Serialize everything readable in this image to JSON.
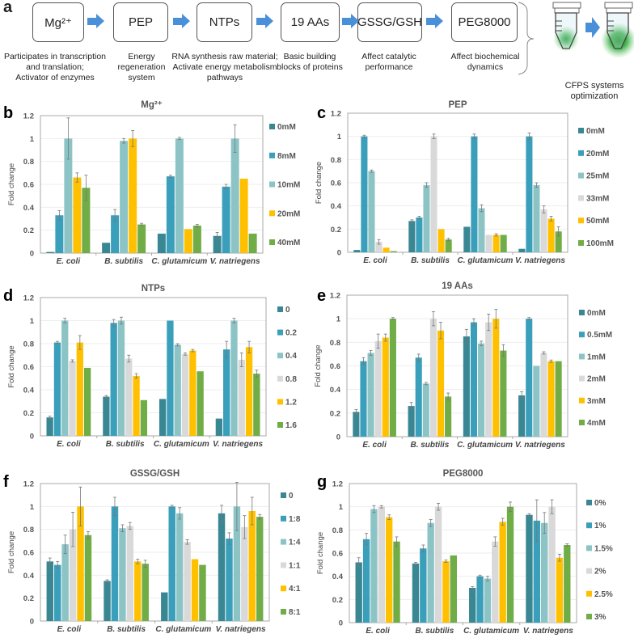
{
  "panel_a": {
    "label": "a",
    "steps": [
      {
        "name": "Mg²⁺",
        "desc": "Participates in transcription\nand translation;\nActivator of enzymes"
      },
      {
        "name": "PEP",
        "desc": "Energy regeneration\nsystem"
      },
      {
        "name": "NTPs",
        "desc": "RNA synthesis raw material;\nActivate energy metabolism\npathways"
      },
      {
        "name": "19 AAs",
        "desc": "Basic building\nblocks of proteins"
      },
      {
        "name": "GSSG/GSH",
        "desc": "Affect catalytic\nperformance"
      },
      {
        "name": "PEG8000",
        "desc": "Affect biochemical\ndynamics"
      }
    ],
    "outcome": "CFPS systems\noptimization",
    "arrow_color": "#4a90d9",
    "glow_color": "#2eaa3a"
  },
  "chart_data": [
    {
      "panel": "b",
      "type": "bar",
      "title": "Mg²⁺",
      "xlabel": "",
      "ylabel": "Fold change",
      "ylim": [
        0,
        1.2
      ],
      "yticks": [
        "0",
        "0.2",
        "0.4",
        "0.6",
        "0.8",
        "1",
        "1.2"
      ],
      "grid": true,
      "legend": "right",
      "categories": [
        "E. coli",
        "B. subtilis",
        "C. glutamicum",
        "V. natriegens"
      ],
      "series": [
        {
          "name": "0mM",
          "color": "#3a8794",
          "values": [
            0.01,
            0.09,
            0.17,
            0.15
          ],
          "errors": [
            0,
            0,
            0,
            0.03
          ]
        },
        {
          "name": "8mM",
          "color": "#3a9fba",
          "values": [
            0.33,
            0.33,
            0.67,
            0.58
          ],
          "errors": [
            0.04,
            0.05,
            0.01,
            0.02
          ]
        },
        {
          "name": "10mM",
          "color": "#8cc4c6",
          "values": [
            1.0,
            0.98,
            1.0,
            1.0
          ],
          "errors": [
            0.18,
            0.02,
            0.01,
            0.12
          ]
        },
        {
          "name": "20mM",
          "color": "#ffc000",
          "values": [
            0.66,
            1.0,
            0.21,
            0.65
          ],
          "errors": [
            0.04,
            0.07,
            0,
            0
          ]
        },
        {
          "name": "40mM",
          "color": "#70ad47",
          "values": [
            0.57,
            0.25,
            0.24,
            0.17
          ],
          "errors": [
            0.11,
            0.01,
            0.01,
            0
          ]
        }
      ]
    },
    {
      "panel": "c",
      "type": "bar",
      "title": "PEP",
      "xlabel": "",
      "ylabel": "Fold change",
      "ylim": [
        0,
        1.2
      ],
      "yticks": [
        "0",
        "0.2",
        "0.4",
        "0.6",
        "0.8",
        "1",
        "1.2"
      ],
      "grid": true,
      "legend": "right",
      "categories": [
        "E. coli",
        "B. subtilis",
        "C. glutamicum",
        "V. natriegens"
      ],
      "series": [
        {
          "name": "0mM",
          "color": "#3a8794",
          "values": [
            0.02,
            0.27,
            0.22,
            0.03
          ],
          "errors": [
            0,
            0.01,
            0,
            0
          ]
        },
        {
          "name": "20mM",
          "color": "#3a9fba",
          "values": [
            1.0,
            0.3,
            1.0,
            1.0
          ],
          "errors": [
            0.01,
            0.01,
            0.02,
            0.03
          ]
        },
        {
          "name": "25mM",
          "color": "#8cc4c6",
          "values": [
            0.7,
            0.58,
            0.38,
            0.58
          ],
          "errors": [
            0.01,
            0.02,
            0.03,
            0.02
          ]
        },
        {
          "name": "33mM",
          "color": "#d9d9d9",
          "values": [
            0.09,
            1.0,
            0.15,
            0.37
          ],
          "errors": [
            0.02,
            0.02,
            0,
            0.03
          ]
        },
        {
          "name": "50mM",
          "color": "#ffc000",
          "values": [
            0.04,
            0.2,
            0.15,
            0.29
          ],
          "errors": [
            0,
            0,
            0.01,
            0.02
          ]
        },
        {
          "name": "100mM",
          "color": "#70ad47",
          "values": [
            0.01,
            0.11,
            0.15,
            0.18
          ],
          "errors": [
            0,
            0.01,
            0,
            0.04
          ]
        }
      ]
    },
    {
      "panel": "d",
      "type": "bar",
      "title": "NTPs",
      "xlabel": "",
      "ylabel": "Fold change",
      "ylim": [
        0,
        1.2
      ],
      "yticks": [
        "0",
        "0.2",
        "0.4",
        "0.6",
        "0.8",
        "1",
        "1.2"
      ],
      "grid": true,
      "legend": "right",
      "categories": [
        "E. coli",
        "B. subtilis",
        "C. glutamicum",
        "V. natriegens"
      ],
      "series": [
        {
          "name": "0",
          "color": "#3a8794",
          "values": [
            0.16,
            0.34,
            0.32,
            0.15
          ],
          "errors": [
            0.01,
            0.01,
            0,
            0
          ]
        },
        {
          "name": "0.2",
          "color": "#3a9fba",
          "values": [
            0.81,
            0.98,
            1.0,
            0.75
          ],
          "errors": [
            0.01,
            0.03,
            0,
            0.07
          ]
        },
        {
          "name": "0.4",
          "color": "#8cc4c6",
          "values": [
            1.0,
            1.0,
            0.79,
            1.0
          ],
          "errors": [
            0.02,
            0.03,
            0.01,
            0.02
          ]
        },
        {
          "name": "0.8",
          "color": "#d9d9d9",
          "values": [
            0.65,
            0.67,
            0.71,
            0.66
          ],
          "errors": [
            0.01,
            0.03,
            0.01,
            0.06
          ]
        },
        {
          "name": "1.2",
          "color": "#ffc000",
          "values": [
            0.81,
            0.52,
            0.74,
            0.77
          ],
          "errors": [
            0.06,
            0.02,
            0.01,
            0.05
          ]
        },
        {
          "name": "1.6",
          "color": "#70ad47",
          "values": [
            0.59,
            0.31,
            0.56,
            0.54
          ],
          "errors": [
            0,
            0,
            0,
            0.03
          ]
        }
      ]
    },
    {
      "panel": "e",
      "type": "bar",
      "title": "19 AAs",
      "xlabel": "",
      "ylabel": "Fold change",
      "ylim": [
        0,
        1.2
      ],
      "yticks": [
        "0",
        "0.2",
        "0.4",
        "0.6",
        "0.8",
        "1",
        "1.2"
      ],
      "grid": true,
      "legend": "right",
      "categories": [
        "E. coli",
        "B. subtilis",
        "C. glutamicum",
        "V. natriegens"
      ],
      "series": [
        {
          "name": "0mM",
          "color": "#3a8794",
          "values": [
            0.21,
            0.26,
            0.85,
            0.35
          ],
          "errors": [
            0.02,
            0.03,
            0.06,
            0.03
          ]
        },
        {
          "name": "0.5mM",
          "color": "#3a9fba",
          "values": [
            0.64,
            0.67,
            0.97,
            1.0
          ],
          "errors": [
            0.03,
            0.03,
            0.03,
            0.01
          ]
        },
        {
          "name": "1mM",
          "color": "#8cc4c6",
          "values": [
            0.71,
            0.45,
            0.79,
            0.6
          ],
          "errors": [
            0.02,
            0.01,
            0.02,
            0
          ]
        },
        {
          "name": "2mM",
          "color": "#d9d9d9",
          "values": [
            0.81,
            1.0,
            0.97,
            0.71
          ],
          "errors": [
            0.06,
            0.06,
            0.07,
            0.01
          ]
        },
        {
          "name": "3mM",
          "color": "#ffc000",
          "values": [
            0.84,
            0.9,
            1.0,
            0.64
          ],
          "errors": [
            0.03,
            0.07,
            0.08,
            0.01
          ]
        },
        {
          "name": "4mM",
          "color": "#70ad47",
          "values": [
            1.0,
            0.34,
            0.73,
            0.64
          ],
          "errors": [
            0.01,
            0.03,
            0.05,
            0
          ]
        }
      ]
    },
    {
      "panel": "f",
      "type": "bar",
      "title": "GSSG/GSH",
      "xlabel": "",
      "ylabel": "Fold change",
      "ylim": [
        0,
        1.2
      ],
      "yticks": [
        "0",
        "0.2",
        "0.4",
        "0.6",
        "0.8",
        "1",
        "1.2"
      ],
      "grid": true,
      "legend": "right",
      "categories": [
        "E. coli",
        "B. subtilis",
        "C. glutamicum",
        "V. natriegens"
      ],
      "series": [
        {
          "name": "0",
          "color": "#3a8794",
          "values": [
            0.52,
            0.35,
            0.25,
            0.94
          ],
          "errors": [
            0.03,
            0.01,
            0,
            0.07
          ]
        },
        {
          "name": "1:8",
          "color": "#3a9fba",
          "values": [
            0.49,
            1.0,
            1.0,
            0.72
          ],
          "errors": [
            0.03,
            0.08,
            0.01,
            0.05
          ]
        },
        {
          "name": "1:4",
          "color": "#8cc4c6",
          "values": [
            0.67,
            0.81,
            0.94,
            1.0
          ],
          "errors": [
            0.08,
            0.03,
            0.05,
            0.21
          ]
        },
        {
          "name": "1:1",
          "color": "#d9d9d9",
          "values": [
            0.8,
            0.83,
            0.69,
            0.82
          ],
          "errors": [
            0.15,
            0.03,
            0.02,
            0.1
          ]
        },
        {
          "name": "4:1",
          "color": "#ffc000",
          "values": [
            1.0,
            0.52,
            0.54,
            0.96
          ],
          "errors": [
            0.17,
            0.02,
            0,
            0.12
          ]
        },
        {
          "name": "8:1",
          "color": "#70ad47",
          "values": [
            0.75,
            0.5,
            0.49,
            0.91
          ],
          "errors": [
            0.03,
            0.03,
            0,
            0.02
          ]
        }
      ]
    },
    {
      "panel": "g",
      "type": "bar",
      "title": "PEG8000",
      "xlabel": "",
      "ylabel": "Fold change",
      "ylim": [
        0,
        1.2
      ],
      "yticks": [
        "0",
        "0.2",
        "0.4",
        "0.6",
        "0.8",
        "1",
        "1.2"
      ],
      "grid": true,
      "legend": "right",
      "categories": [
        "E. coli",
        "B. subtilis",
        "C. glutamicum",
        "V. natriegens"
      ],
      "series": [
        {
          "name": "0%",
          "color": "#3a8794",
          "values": [
            0.52,
            0.51,
            0.3,
            0.93
          ],
          "errors": [
            0.04,
            0.01,
            0.01,
            0.01
          ]
        },
        {
          "name": "1%",
          "color": "#3a9fba",
          "values": [
            0.72,
            0.64,
            0.4,
            0.88
          ],
          "errors": [
            0.05,
            0.03,
            0.01,
            0.18
          ]
        },
        {
          "name": "1.5%",
          "color": "#8cc4c6",
          "values": [
            0.98,
            0.86,
            0.38,
            0.86
          ],
          "errors": [
            0.03,
            0.03,
            0.02,
            0.09
          ]
        },
        {
          "name": "2%",
          "color": "#d9d9d9",
          "values": [
            1.0,
            1.0,
            0.7,
            1.0
          ],
          "errors": [
            0.01,
            0.03,
            0.04,
            0.06
          ]
        },
        {
          "name": "2.5%",
          "color": "#ffc000",
          "values": [
            0.91,
            0.53,
            0.87,
            0.56
          ],
          "errors": [
            0.02,
            0.01,
            0.03,
            0.03
          ]
        },
        {
          "name": "3%",
          "color": "#70ad47",
          "values": [
            0.7,
            0.58,
            1.0,
            0.67
          ],
          "errors": [
            0.04,
            0,
            0.04,
            0.01
          ]
        }
      ]
    }
  ]
}
